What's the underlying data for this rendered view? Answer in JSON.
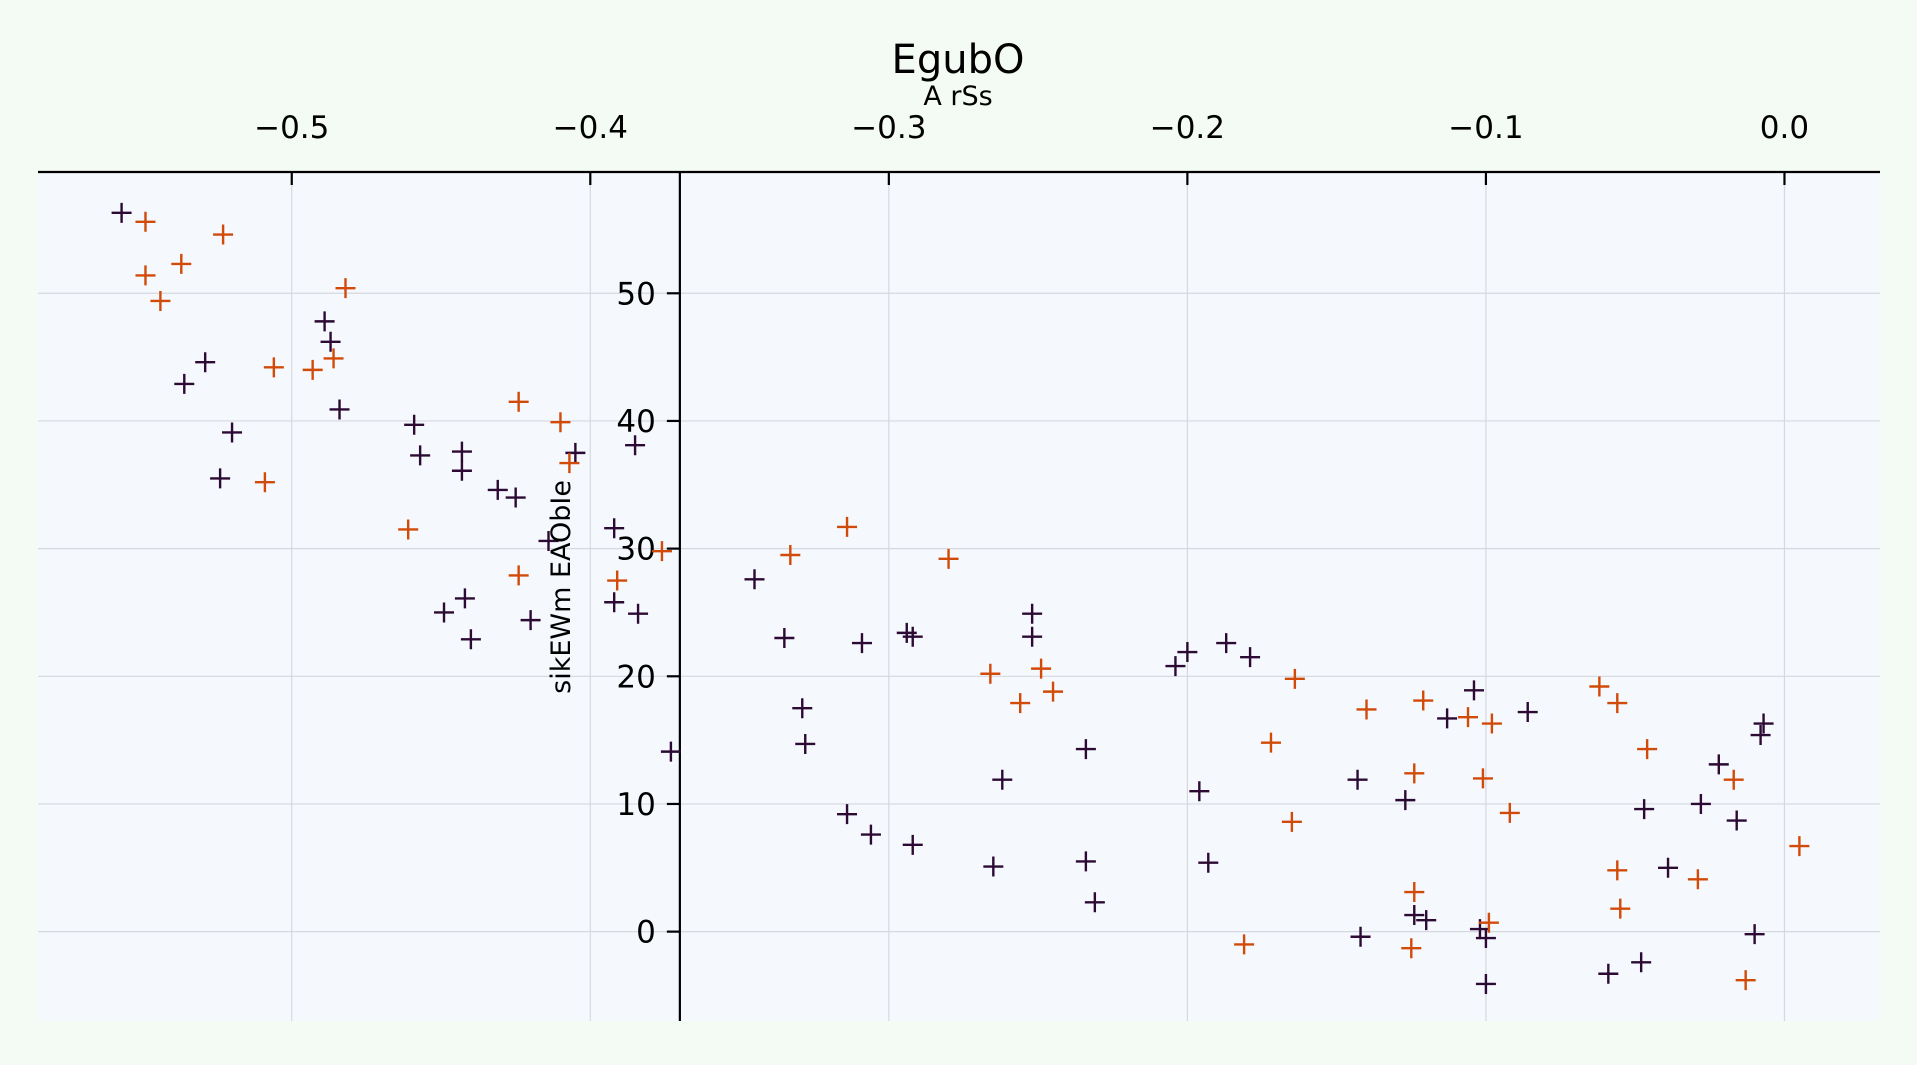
{
  "chart_data": {
    "type": "scatter",
    "title": "EgubO",
    "xlabel": "A rSs",
    "ylabel": "sikEWm EAObIe",
    "x_axis_position": "top",
    "y_axis_position": "x=-0.37",
    "grid": true,
    "legend": "none",
    "marker": "+",
    "xlim": [
      -0.585,
      0.032
    ],
    "ylim": [
      -7.0,
      59.5
    ],
    "xticks": [
      -0.5,
      -0.4,
      -0.3,
      -0.2,
      -0.1,
      0.0
    ],
    "xtick_labels": [
      "−0.5",
      "−0.4",
      "−0.3",
      "−0.2",
      "−0.1",
      "0.0"
    ],
    "yticks": [
      0,
      10,
      20,
      30,
      40,
      50
    ],
    "ytick_labels": [
      "0",
      "10",
      "20",
      "30",
      "40",
      "50"
    ],
    "colors": {
      "background": "#f4fbf4",
      "plot_bg": "#f5f9fe",
      "grid": "#d5d8de",
      "series_dark": "#2c0a33",
      "series_orange": "#d24a08"
    },
    "series": [
      {
        "color": "#2c0a33",
        "points": [
          [
            -0.557,
            56.3
          ],
          [
            -0.529,
            44.6
          ],
          [
            -0.536,
            42.9
          ],
          [
            -0.52,
            39.1
          ],
          [
            -0.524,
            35.5
          ],
          [
            -0.489,
            47.8
          ],
          [
            -0.487,
            46.2
          ],
          [
            -0.484,
            40.9
          ],
          [
            -0.459,
            39.7
          ],
          [
            -0.457,
            37.3
          ],
          [
            -0.449,
            25.0
          ],
          [
            -0.443,
            37.6
          ],
          [
            -0.443,
            36.1
          ],
          [
            -0.442,
            26.1
          ],
          [
            -0.44,
            22.9
          ],
          [
            -0.431,
            34.6
          ],
          [
            -0.425,
            34.0
          ],
          [
            -0.42,
            24.4
          ],
          [
            -0.414,
            30.6
          ],
          [
            -0.405,
            37.5
          ],
          [
            -0.392,
            31.6
          ],
          [
            -0.392,
            25.8
          ],
          [
            -0.385,
            38.1
          ],
          [
            -0.384,
            24.9
          ],
          [
            -0.373,
            14.1
          ],
          [
            -0.345,
            27.6
          ],
          [
            -0.335,
            23.0
          ],
          [
            -0.329,
            17.5
          ],
          [
            -0.328,
            14.7
          ],
          [
            -0.314,
            9.2
          ],
          [
            -0.309,
            22.6
          ],
          [
            -0.306,
            7.6
          ],
          [
            -0.294,
            23.4
          ],
          [
            -0.292,
            23.1
          ],
          [
            -0.292,
            6.8
          ],
          [
            -0.265,
            5.1
          ],
          [
            -0.262,
            11.9
          ],
          [
            -0.252,
            24.9
          ],
          [
            -0.252,
            23.1
          ],
          [
            -0.234,
            14.3
          ],
          [
            -0.234,
            5.5
          ],
          [
            -0.231,
            2.3
          ],
          [
            -0.204,
            20.8
          ],
          [
            -0.2,
            21.9
          ],
          [
            -0.196,
            11.0
          ],
          [
            -0.193,
            5.4
          ],
          [
            -0.187,
            22.6
          ],
          [
            -0.179,
            21.5
          ],
          [
            -0.143,
            11.9
          ],
          [
            -0.142,
            -0.4
          ],
          [
            -0.127,
            10.3
          ],
          [
            -0.124,
            1.3
          ],
          [
            -0.12,
            0.9
          ],
          [
            -0.113,
            16.7
          ],
          [
            -0.104,
            18.9
          ],
          [
            -0.102,
            0.2
          ],
          [
            -0.1,
            -0.5
          ],
          [
            -0.1,
            -4.1
          ],
          [
            -0.086,
            17.2
          ],
          [
            -0.059,
            -3.3
          ],
          [
            -0.048,
            -2.4
          ],
          [
            -0.047,
            9.6
          ],
          [
            -0.039,
            5.0
          ],
          [
            -0.028,
            10.0
          ],
          [
            -0.022,
            13.1
          ],
          [
            -0.016,
            8.7
          ],
          [
            -0.01,
            -0.2
          ],
          [
            -0.008,
            15.4
          ],
          [
            -0.007,
            16.3
          ]
        ]
      },
      {
        "color": "#d24a08",
        "points": [
          [
            -0.549,
            55.6
          ],
          [
            -0.549,
            51.4
          ],
          [
            -0.544,
            49.4
          ],
          [
            -0.537,
            52.3
          ],
          [
            -0.523,
            54.6
          ],
          [
            -0.506,
            44.2
          ],
          [
            -0.509,
            35.2
          ],
          [
            -0.493,
            44.0
          ],
          [
            -0.486,
            44.9
          ],
          [
            -0.482,
            50.4
          ],
          [
            -0.461,
            31.5
          ],
          [
            -0.424,
            41.5
          ],
          [
            -0.424,
            27.9
          ],
          [
            -0.41,
            39.9
          ],
          [
            -0.407,
            36.7
          ],
          [
            -0.391,
            27.5
          ],
          [
            -0.376,
            29.8
          ],
          [
            -0.333,
            29.5
          ],
          [
            -0.314,
            31.7
          ],
          [
            -0.28,
            29.2
          ],
          [
            -0.266,
            20.2
          ],
          [
            -0.256,
            17.9
          ],
          [
            -0.249,
            20.6
          ],
          [
            -0.245,
            18.8
          ],
          [
            -0.181,
            -1.0
          ],
          [
            -0.172,
            14.8
          ],
          [
            -0.165,
            8.6
          ],
          [
            -0.164,
            19.8
          ],
          [
            -0.14,
            17.4
          ],
          [
            -0.124,
            12.4
          ],
          [
            -0.124,
            3.1
          ],
          [
            -0.125,
            -1.3
          ],
          [
            -0.121,
            18.1
          ],
          [
            -0.106,
            16.8
          ],
          [
            -0.101,
            12.0
          ],
          [
            -0.099,
            0.7
          ],
          [
            -0.098,
            16.3
          ],
          [
            -0.092,
            9.3
          ],
          [
            -0.062,
            19.2
          ],
          [
            -0.056,
            17.9
          ],
          [
            -0.056,
            4.8
          ],
          [
            -0.055,
            1.8
          ],
          [
            -0.046,
            14.3
          ],
          [
            -0.029,
            4.1
          ],
          [
            -0.017,
            11.9
          ],
          [
            -0.013,
            -3.8
          ],
          [
            0.005,
            6.7
          ]
        ]
      }
    ]
  }
}
